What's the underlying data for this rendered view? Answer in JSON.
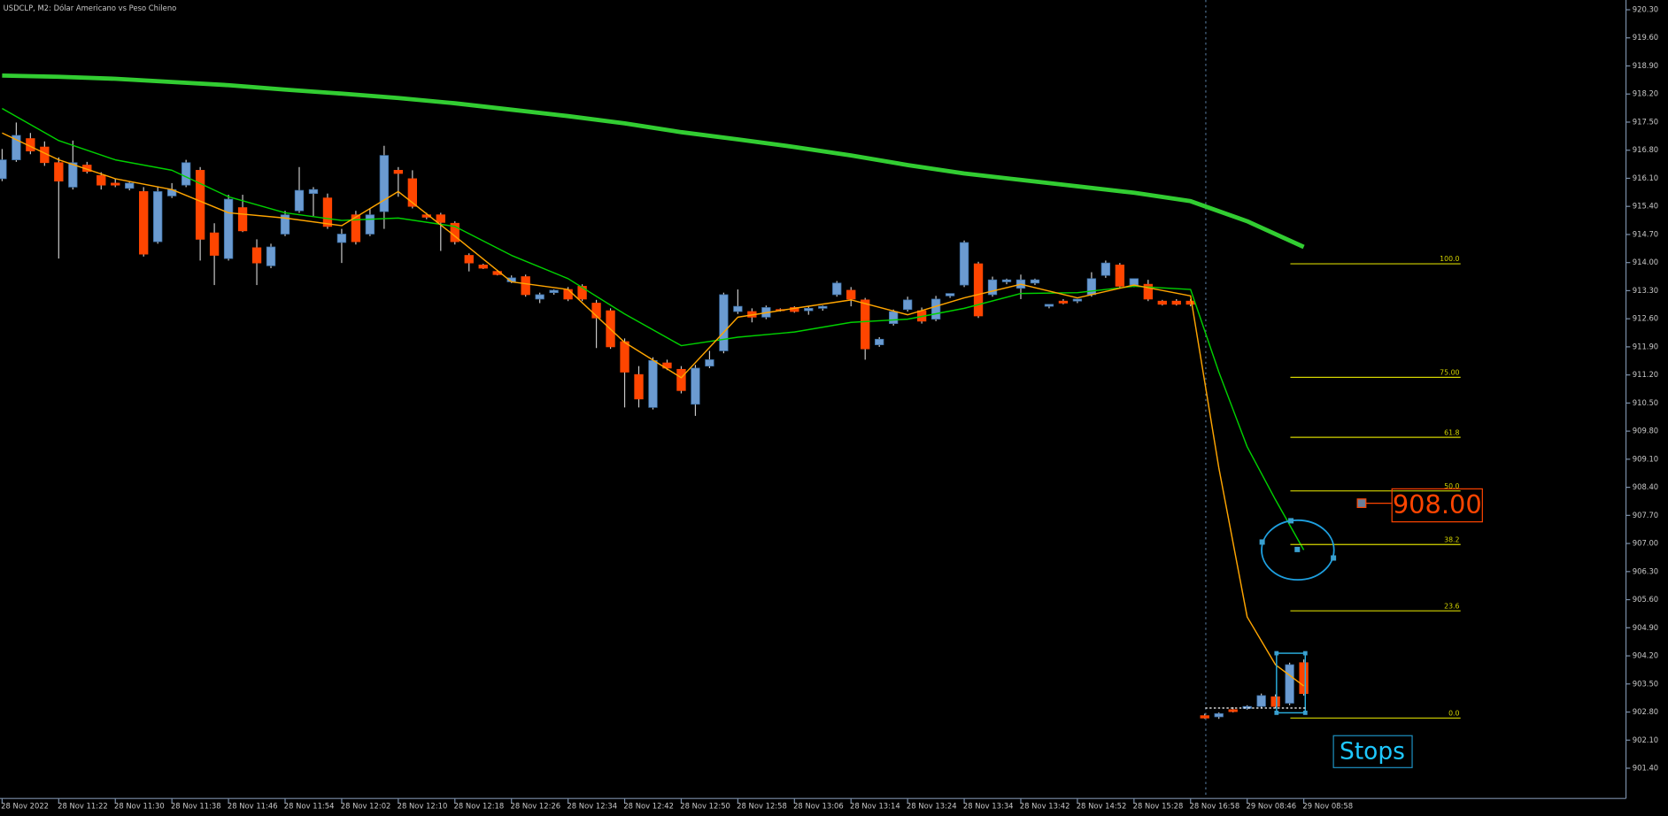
{
  "chart_data": {
    "type": "candlestick",
    "title": "USDCLP, M2:  Dólar Americano vs Peso Chileno",
    "categories": [
      "28 Nov 2022",
      null,
      null,
      null,
      "28 Nov 11:22",
      null,
      null,
      null,
      "28 Nov 11:30",
      null,
      null,
      null,
      "28 Nov 11:38",
      null,
      null,
      null,
      "28 Nov 11:46",
      null,
      null,
      null,
      "28 Nov 11:54",
      null,
      null,
      null,
      "28 Nov 12:02",
      null,
      null,
      null,
      "28 Nov 12:10",
      null,
      null,
      null,
      "28 Nov 12:18",
      null,
      null,
      null,
      "28 Nov 12:26",
      null,
      null,
      null,
      "28 Nov 12:34",
      null,
      null,
      null,
      "28 Nov 12:42",
      null,
      null,
      null,
      "28 Nov 12:50",
      null,
      null,
      null,
      "28 Nov 12:58",
      null,
      null,
      null,
      "28 Nov 13:06",
      null,
      null,
      null,
      "28 Nov 13:14",
      null,
      null,
      null,
      "28 Nov 13:24",
      null,
      null,
      null,
      "28 Nov 13:34",
      null,
      null,
      null,
      "28 Nov 13:42",
      null,
      null,
      null,
      "28 Nov 14:52",
      null,
      null,
      null,
      "28 Nov 15:28",
      null,
      null,
      null,
      "28 Nov 16:58",
      null,
      null,
      null,
      "29 Nov 08:46",
      null,
      null,
      null,
      "29 Nov 08:58"
    ],
    "open": [
      916.09,
      916.56,
      917.09,
      916.88,
      916.49,
      915.88,
      916.43,
      916.17,
      915.98,
      915.85,
      915.77,
      914.52,
      915.66,
      915.93,
      916.3,
      914.74,
      914.1,
      915.37,
      914.37,
      913.92,
      914.71,
      915.29,
      915.72,
      915.61,
      914.5,
      915.19,
      914.71,
      915.27,
      916.3,
      916.09,
      915.19,
      915.19,
      914.98,
      914.18,
      913.94,
      913.78,
      913.52,
      913.65,
      913.09,
      913.25,
      913.33,
      913.41,
      912.99,
      912.8,
      912.03,
      911.21,
      910.39,
      911.5,
      911.34,
      910.47,
      911.42,
      911.8,
      912.78,
      912.78,
      912.64,
      912.83,
      912.88,
      912.8,
      912.86,
      913.2,
      913.31,
      913.07,
      911.95,
      912.48,
      912.83,
      912.8,
      912.59,
      913.17,
      913.44,
      913.97,
      913.2,
      913.52,
      913.36,
      913.49,
      912.91,
      913.04,
      913.04,
      913.2,
      913.68,
      913.94,
      913.44,
      913.46,
      913.04,
      913.04,
      913.04,
      902.71,
      902.68,
      902.86,
      902.89,
      902.94,
      903.18,
      903.02,
      904.03
    ],
    "high": [
      916.83,
      917.49,
      917.23,
      917.02,
      916.62,
      917.04,
      916.51,
      916.25,
      916.09,
      916.03,
      915.88,
      915.88,
      915.98,
      916.56,
      916.38,
      914.98,
      915.69,
      915.69,
      914.58,
      914.47,
      915.29,
      916.38,
      915.88,
      915.72,
      914.84,
      915.29,
      915.35,
      916.91,
      916.38,
      916.3,
      915.24,
      915.24,
      915.03,
      914.23,
      913.97,
      913.81,
      913.68,
      913.7,
      913.25,
      913.33,
      913.39,
      913.46,
      913.07,
      912.86,
      912.11,
      911.42,
      911.64,
      911.58,
      911.42,
      911.45,
      911.8,
      913.25,
      913.33,
      912.86,
      912.93,
      912.86,
      912.91,
      912.91,
      912.93,
      913.54,
      913.39,
      913.12,
      912.14,
      912.83,
      913.15,
      912.88,
      913.17,
      913.23,
      914.55,
      914.02,
      913.65,
      913.6,
      913.7,
      913.6,
      912.96,
      913.09,
      913.09,
      913.76,
      914.05,
      913.99,
      913.52,
      913.57,
      913.07,
      913.09,
      913.09,
      902.76,
      902.79,
      902.92,
      902.97,
      903.26,
      903.24,
      904.03,
      904.11
    ],
    "low": [
      916.03,
      916.51,
      916.7,
      916.41,
      914.1,
      915.82,
      916.22,
      915.82,
      915.88,
      915.8,
      914.15,
      914.47,
      915.61,
      915.88,
      914.05,
      913.44,
      914.05,
      914.76,
      913.44,
      913.86,
      914.66,
      915.24,
      915.16,
      914.84,
      913.99,
      914.45,
      914.66,
      914.84,
      915.64,
      915.35,
      915.08,
      914.29,
      914.45,
      913.78,
      913.84,
      913.68,
      913.49,
      913.15,
      912.99,
      913.2,
      913.04,
      913.04,
      911.87,
      911.85,
      910.39,
      910.39,
      910.34,
      911.32,
      910.74,
      910.18,
      911.37,
      911.74,
      912.72,
      912.51,
      912.59,
      912.78,
      912.75,
      912.7,
      912.8,
      913.15,
      912.91,
      911.58,
      911.9,
      912.43,
      912.78,
      912.48,
      912.54,
      913.12,
      913.39,
      912.62,
      913.15,
      913.46,
      913.09,
      913.44,
      912.86,
      912.96,
      912.99,
      913.15,
      913.62,
      913.36,
      913.39,
      913.04,
      912.93,
      912.93,
      912.91,
      902.63,
      902.63,
      902.79,
      902.86,
      902.89,
      902.89,
      902.97,
      903.21
    ],
    "close": [
      916.56,
      917.17,
      916.78,
      916.49,
      916.03,
      916.49,
      916.27,
      915.93,
      915.93,
      915.98,
      914.21,
      915.77,
      915.82,
      916.49,
      914.58,
      914.18,
      915.58,
      914.79,
      913.99,
      914.39,
      915.19,
      915.8,
      915.82,
      914.9,
      914.71,
      914.52,
      915.19,
      916.67,
      916.22,
      915.4,
      915.13,
      915.0,
      914.52,
      913.99,
      913.86,
      913.7,
      913.62,
      913.2,
      913.2,
      913.31,
      913.09,
      913.09,
      912.62,
      911.9,
      911.27,
      910.6,
      911.56,
      911.37,
      910.81,
      911.37,
      911.58,
      913.2,
      912.91,
      912.64,
      912.88,
      912.8,
      912.78,
      912.86,
      912.91,
      913.49,
      913.09,
      911.85,
      912.09,
      912.78,
      913.07,
      912.54,
      913.09,
      913.23,
      914.5,
      912.67,
      913.57,
      913.57,
      913.57,
      913.57,
      912.96,
      912.99,
      913.09,
      913.6,
      913.99,
      913.41,
      913.6,
      913.09,
      912.96,
      912.96,
      912.96,
      902.65,
      902.76,
      902.81,
      902.94,
      903.21,
      902.94,
      903.98,
      903.26
    ],
    "up_color": "#6b9bd1",
    "down_color": "#ff4500",
    "wick_color": "#c8c8c8",
    "moving_averages": [
      {
        "color": "#32cd32",
        "x": [
          0,
          4,
          8,
          12,
          16,
          20,
          24,
          28,
          32,
          36,
          40,
          44,
          48,
          52,
          56,
          60,
          64,
          68,
          72,
          76,
          80,
          84,
          88,
          92
        ],
        "values": [
          918.66,
          918.63,
          918.58,
          918.5,
          918.42,
          918.31,
          918.21,
          918.1,
          917.97,
          917.81,
          917.65,
          917.47,
          917.25,
          917.07,
          916.88,
          916.67,
          916.43,
          916.22,
          916.06,
          915.9,
          915.74,
          915.53,
          915.03,
          914.39
        ]
      },
      {
        "color": "#00d000",
        "x": [
          0,
          4,
          8,
          12,
          16,
          20,
          24,
          28,
          32,
          36,
          40,
          44,
          48,
          52,
          56,
          60,
          64,
          68,
          72,
          76,
          80,
          84,
          86,
          88,
          90,
          92
        ],
        "values": [
          917.84,
          917.04,
          916.56,
          916.3,
          915.64,
          915.24,
          915.05,
          915.11,
          914.9,
          914.18,
          913.6,
          912.72,
          911.93,
          912.14,
          912.27,
          912.51,
          912.59,
          912.86,
          913.23,
          913.25,
          913.41,
          913.33,
          911.27,
          909.41,
          908.09,
          906.84
        ]
      },
      {
        "color": "#ffa500",
        "x": [
          0,
          4,
          8,
          12,
          16,
          20,
          24,
          28,
          32,
          36,
          40,
          44,
          48,
          52,
          56,
          60,
          64,
          68,
          72,
          76,
          80,
          84,
          86,
          88,
          90,
          92
        ],
        "values": [
          917.23,
          916.56,
          916.09,
          915.82,
          915.24,
          915.11,
          914.92,
          915.77,
          914.66,
          913.52,
          913.33,
          912.01,
          911.13,
          912.64,
          912.86,
          913.07,
          912.7,
          913.12,
          913.46,
          913.12,
          913.44,
          913.17,
          908.88,
          905.17,
          903.98,
          903.45
        ]
      }
    ],
    "fibonacci": {
      "color": "#d4d400",
      "high": 913.97,
      "low": 902.65,
      "levels": [
        100,
        75,
        61.8,
        50,
        38.2,
        23.6,
        0
      ],
      "level_labels": [
        "100.0",
        "75.00",
        "61.8",
        "50.0",
        "38.2",
        "23.6",
        "0.0"
      ]
    },
    "annotations": [
      "908.00",
      "Stops"
    ],
    "ylim": [
      900.66,
      920.49
    ],
    "yticks": [
      {
        "value": 920.3,
        "label": "920.30"
      },
      {
        "value": 919.6,
        "label": "919.60"
      },
      {
        "value": 918.9,
        "label": "918.90"
      },
      {
        "value": 918.2,
        "label": "918.20"
      },
      {
        "value": 917.5,
        "label": "917.50"
      },
      {
        "value": 916.8,
        "label": "916.80"
      },
      {
        "value": 916.1,
        "label": "916.10"
      },
      {
        "value": 915.4,
        "label": "915.40"
      },
      {
        "value": 914.7,
        "label": "914.70"
      },
      {
        "value": 914.0,
        "label": "914.00"
      },
      {
        "value": 913.3,
        "label": "913.30"
      },
      {
        "value": 912.6,
        "label": "912.60"
      },
      {
        "value": 911.9,
        "label": "911.90"
      },
      {
        "value": 911.2,
        "label": "911.20"
      },
      {
        "value": 910.5,
        "label": "910.50"
      },
      {
        "value": 909.8,
        "label": "909.80"
      },
      {
        "value": 909.1,
        "label": "909.10"
      },
      {
        "value": 908.4,
        "label": "908.40"
      },
      {
        "value": 907.7,
        "label": "907.70"
      },
      {
        "value": 907.0,
        "label": "907.00"
      },
      {
        "value": 906.3,
        "label": "906.30"
      },
      {
        "value": 905.6,
        "label": "905.60"
      },
      {
        "value": 904.9,
        "label": "904.90"
      },
      {
        "value": 904.2,
        "label": "904.20"
      },
      {
        "value": 903.5,
        "label": "903.50"
      },
      {
        "value": 902.8,
        "label": "902.80"
      },
      {
        "value": 902.1,
        "label": "902.10"
      },
      {
        "value": 901.4,
        "label": "901.40"
      }
    ],
    "grid": false
  }
}
